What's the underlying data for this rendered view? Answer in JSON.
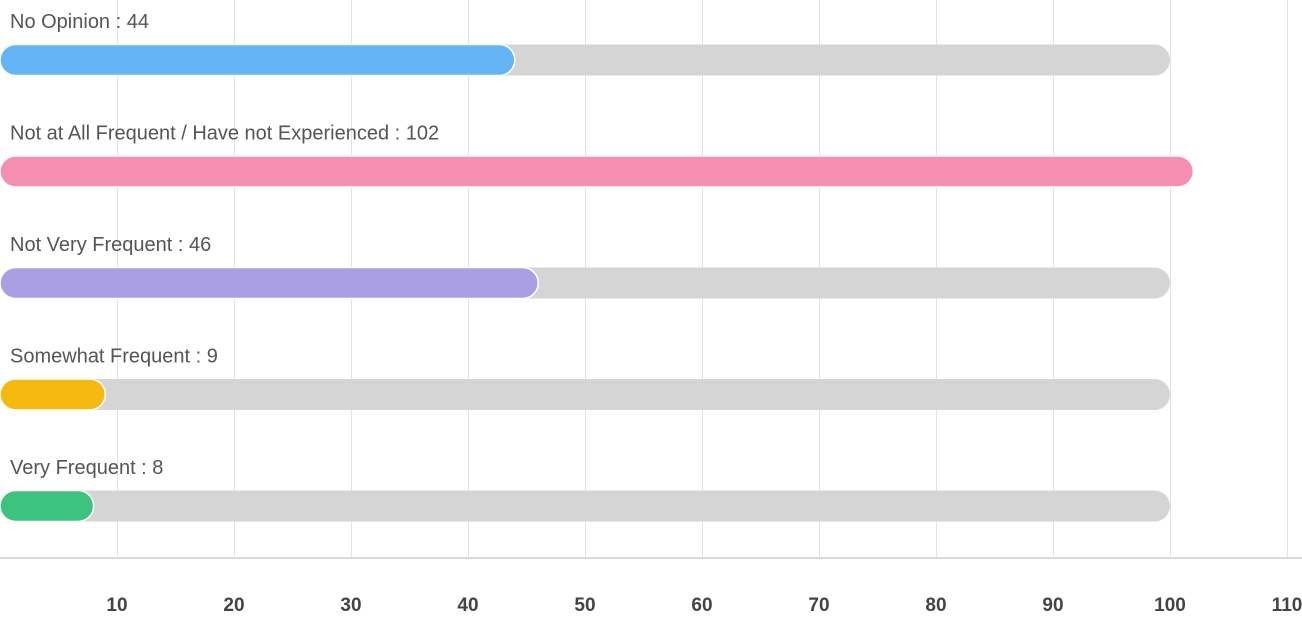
{
  "chart_data": {
    "type": "bar",
    "orientation": "horizontal",
    "title": "",
    "xlabel": "",
    "ylabel": "",
    "xlim": [
      0,
      110
    ],
    "track_max": 100,
    "x_ticks": [
      10,
      20,
      30,
      40,
      50,
      60,
      70,
      80,
      90,
      100,
      110
    ],
    "grid": true,
    "legend": "none",
    "track_color": "#d5d5d5",
    "label_separator": " : ",
    "bars": [
      {
        "category": "No Opinion",
        "value": 44,
        "color": "#64b5f6"
      },
      {
        "category": "Not at All Frequent / Have not Experienced",
        "value": 102,
        "color": "#f48fb1"
      },
      {
        "category": "Not Very Frequent",
        "value": 46,
        "color": "#ab9fe4"
      },
      {
        "category": "Somewhat Frequent",
        "value": 9,
        "color": "#f5b910"
      },
      {
        "category": "Very Frequent",
        "value": 8,
        "color": "#3ec37f"
      }
    ]
  }
}
